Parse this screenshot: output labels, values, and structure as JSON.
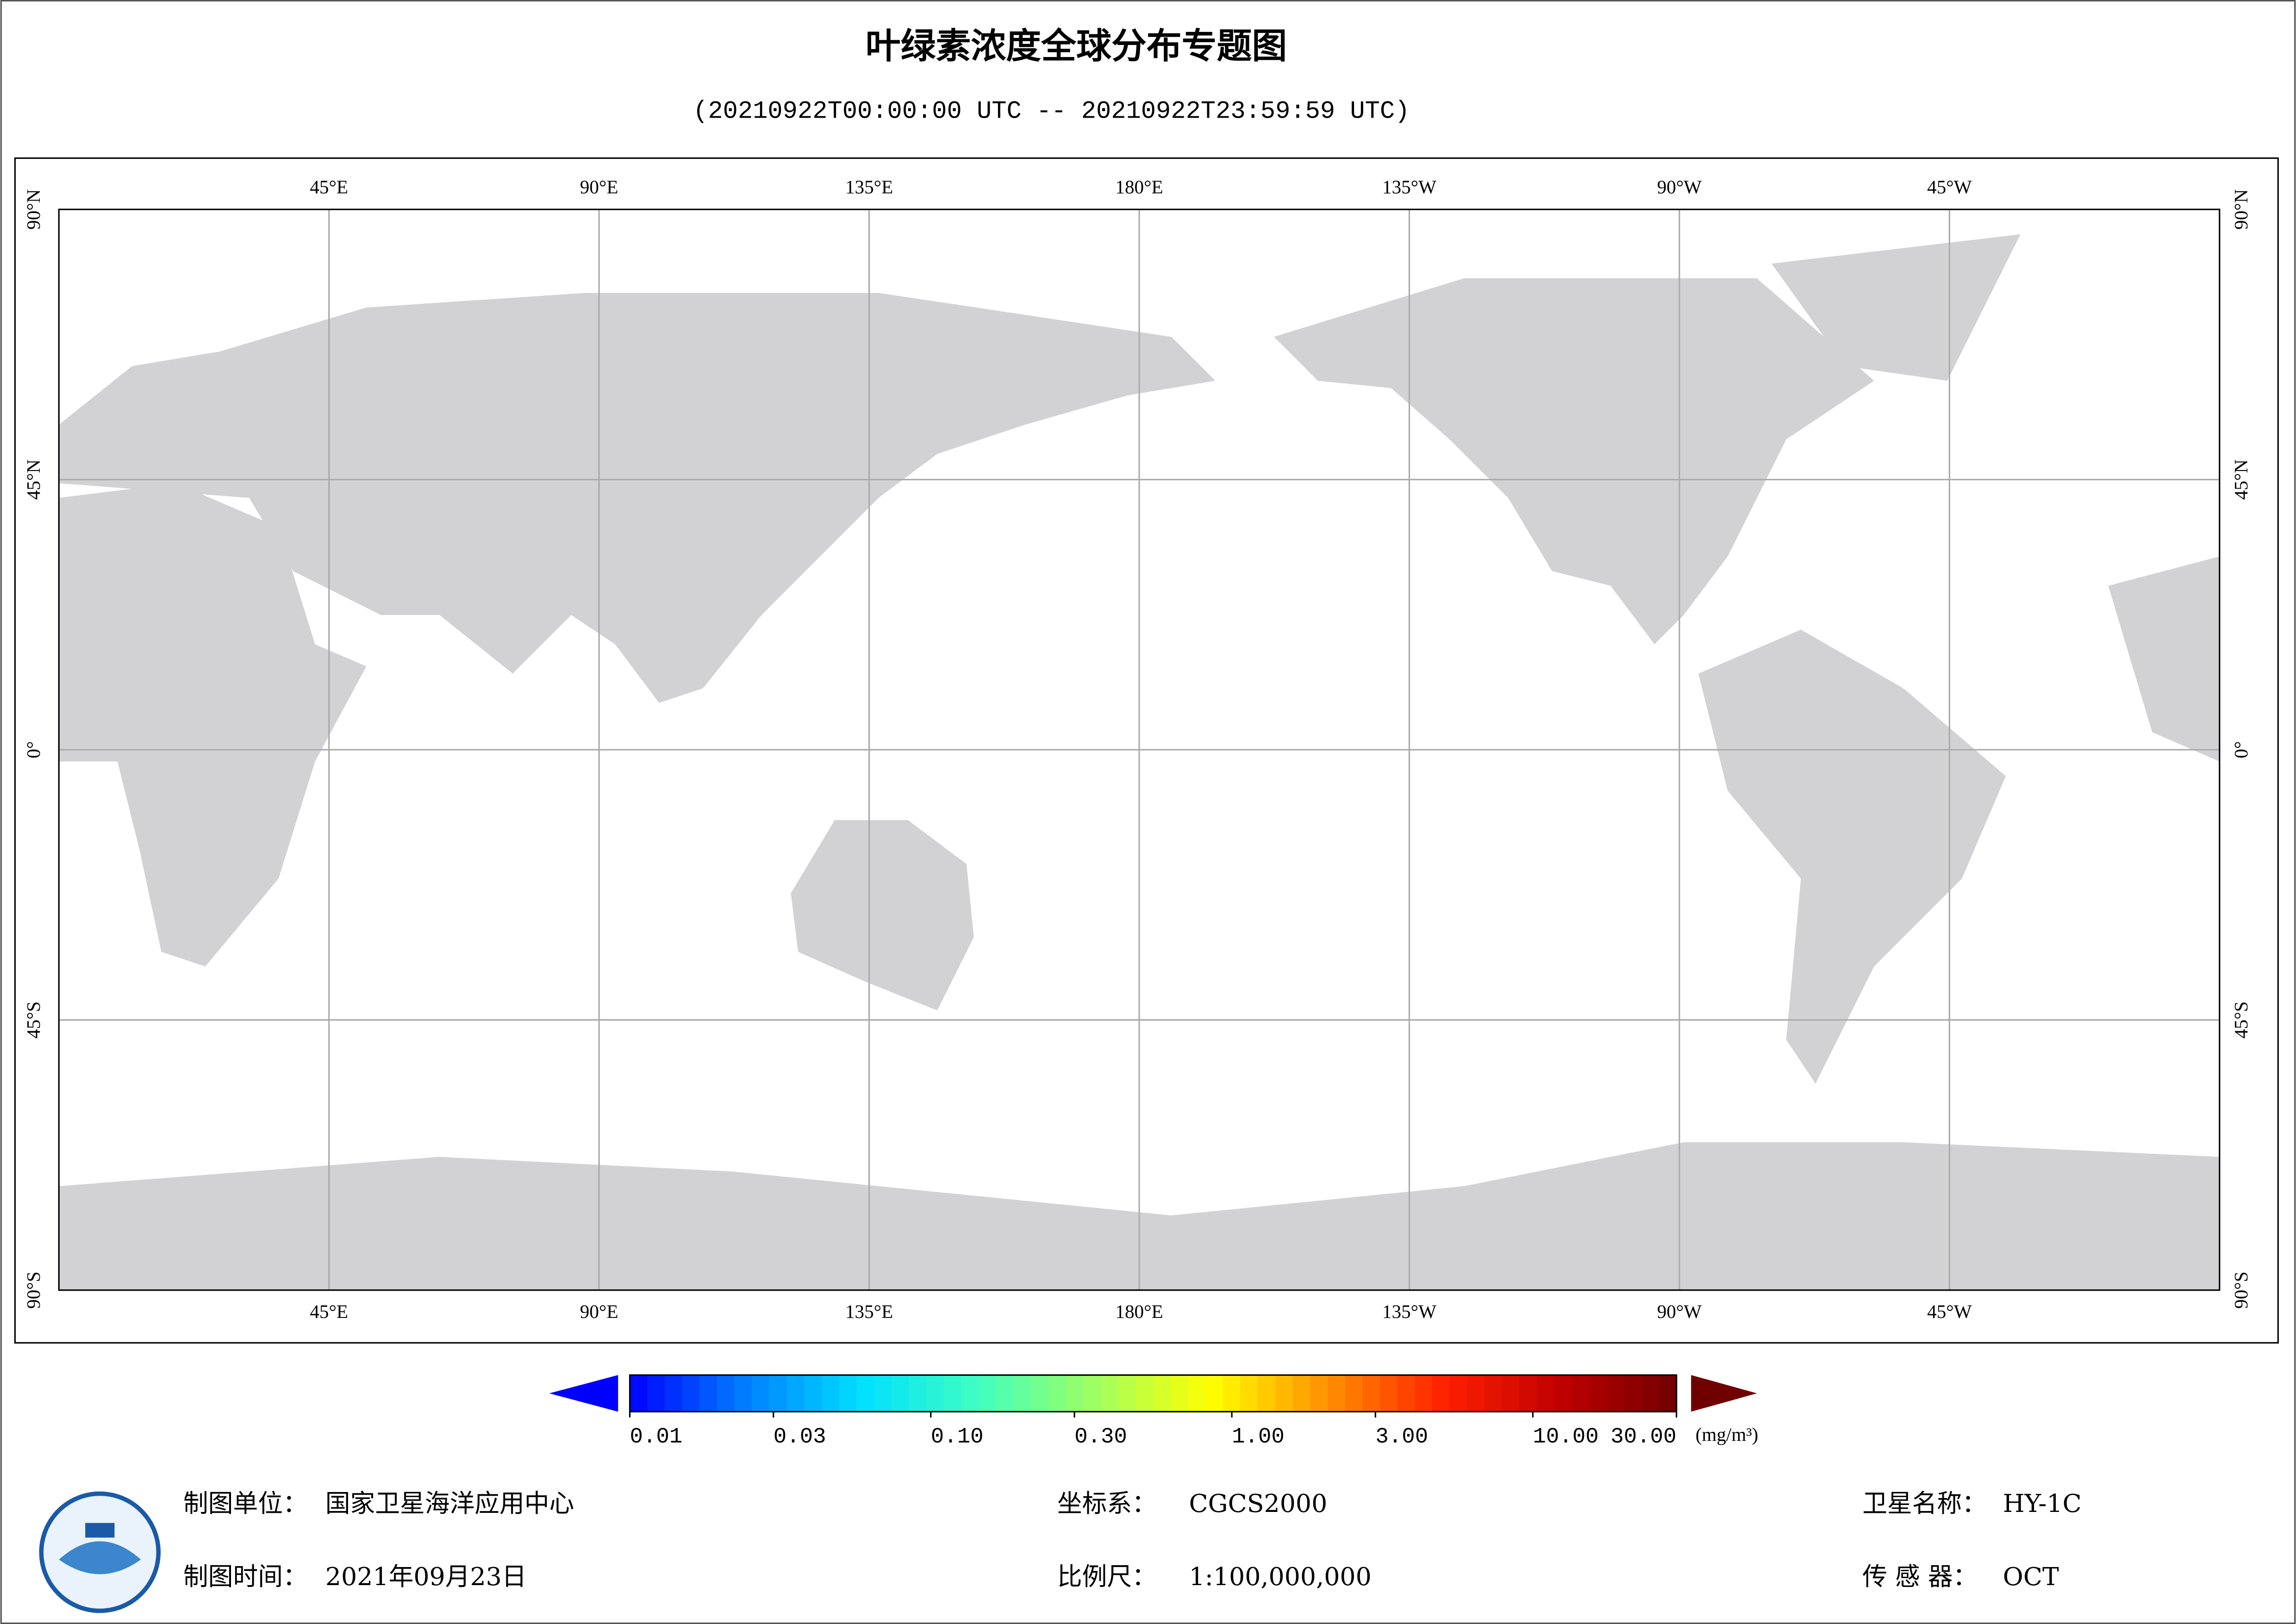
{
  "header": {
    "title": "叶绿素浓度全球分布专题图",
    "subtitle": "(20210922T00:00:00 UTC -- 20210922T23:59:59 UTC)"
  },
  "map": {
    "lon_lim": [
      0,
      360
    ],
    "lat_lim": [
      -90,
      90
    ],
    "lon_ticks": [
      {
        "value": 45,
        "label": "45°E"
      },
      {
        "value": 90,
        "label": "90°E"
      },
      {
        "value": 135,
        "label": "135°E"
      },
      {
        "value": 180,
        "label": "180°E"
      },
      {
        "value": -135,
        "label": "135°W"
      },
      {
        "value": -90,
        "label": "90°W"
      },
      {
        "value": -45,
        "label": "45°W"
      }
    ],
    "lat_ticks": [
      {
        "value": 90,
        "label": "90°N"
      },
      {
        "value": 45,
        "label": "45°N"
      },
      {
        "value": 0,
        "label": "0°"
      },
      {
        "value": -45,
        "label": "45°S"
      },
      {
        "value": -90,
        "label": "90°S"
      }
    ],
    "grid": true
  },
  "colorbar": {
    "scale": "log",
    "lim": [
      0.01,
      30
    ],
    "extend": "both",
    "ticks": [
      {
        "value": 0.01,
        "label": "0.01"
      },
      {
        "value": 0.03,
        "label": "0.03"
      },
      {
        "value": 0.1,
        "label": "0.10"
      },
      {
        "value": 0.3,
        "label": "0.30"
      },
      {
        "value": 1,
        "label": "1.00"
      },
      {
        "value": 3,
        "label": "3.00"
      },
      {
        "value": 10,
        "label": "10.00"
      },
      {
        "value": 30,
        "label": "30.00"
      }
    ],
    "unit": "(mg/m³)",
    "colors": [
      "#0000ff",
      "#0080ff",
      "#00e0ff",
      "#40ffc0",
      "#a0ff60",
      "#ffff00",
      "#ff9000",
      "#ff2000",
      "#c00000",
      "#700000"
    ]
  },
  "footer": {
    "unit": {
      "label": "制图单位：",
      "value": "国家卫星海洋应用中心"
    },
    "date": {
      "label": "制图时间：",
      "value": "2021年09月23日"
    },
    "crs": {
      "label": "坐标系：",
      "value": "CGCS2000"
    },
    "scale": {
      "label": "比例尺：",
      "value": "1:100,000,000"
    },
    "satellite": {
      "label": "卫星名称：",
      "value": "HY-1C"
    },
    "sensor": {
      "label": "传 感 器：",
      "value": "OCT"
    }
  }
}
